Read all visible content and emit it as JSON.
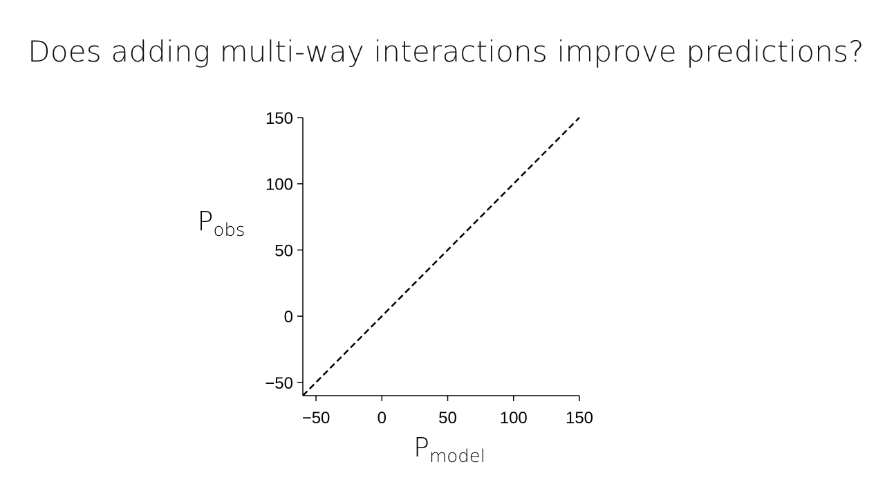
{
  "title": "Does adding multi-way interactions improve predictions?",
  "chart_data": {
    "type": "line",
    "xlabel": {
      "base": "P",
      "subscript": "model"
    },
    "ylabel": {
      "base": "P",
      "subscript": "obs"
    },
    "xlim": [
      -60,
      150
    ],
    "ylim": [
      -60,
      150
    ],
    "xticks": [
      -50,
      0,
      50,
      100,
      150
    ],
    "yticks": [
      -50,
      0,
      50,
      100,
      150
    ],
    "grid": false,
    "series": [
      {
        "style": "dashed",
        "color": "#000000",
        "x": [
          -60,
          150
        ],
        "y": [
          -60,
          150
        ]
      }
    ]
  }
}
